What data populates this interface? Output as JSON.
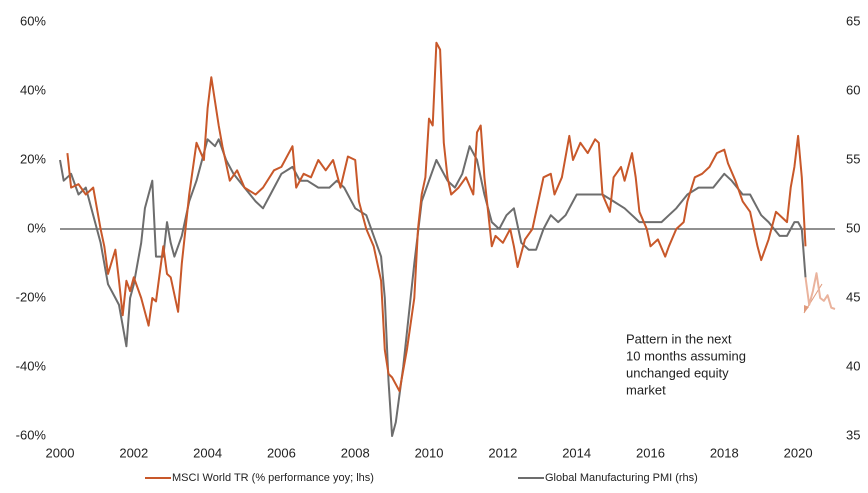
{
  "chart_data": {
    "type": "line",
    "xlim": [
      2000,
      2021
    ],
    "xticks": [
      2000,
      2002,
      2004,
      2006,
      2008,
      2010,
      2012,
      2014,
      2016,
      2018,
      2020
    ],
    "ylim": [
      -60,
      60
    ],
    "yticks": [
      {
        "value": -60,
        "label": "-60%"
      },
      {
        "value": -40,
        "label": "-40%"
      },
      {
        "value": -20,
        "label": "-20%"
      },
      {
        "value": 0,
        "label": "0%"
      },
      {
        "value": 20,
        "label": "20%"
      },
      {
        "value": 40,
        "label": "40%"
      },
      {
        "value": 60,
        "label": "60%"
      }
    ],
    "y2lim": [
      35,
      65
    ],
    "y2ticks": [
      35,
      40,
      45,
      50,
      55,
      60,
      65
    ],
    "series": [
      {
        "name": "MSCI World TR (% performance yoy; lhs)",
        "color": "#c8582a",
        "x": [
          2000.2,
          2000.3,
          2000.5,
          2000.7,
          2000.9,
          2001.1,
          2001.2,
          2001.3,
          2001.5,
          2001.6,
          2001.7,
          2001.8,
          2001.9,
          2002.0,
          2002.2,
          2002.4,
          2002.5,
          2002.6,
          2002.8,
          2002.9,
          2003.0,
          2003.2,
          2003.3,
          2003.5,
          2003.7,
          2003.9,
          2004.0,
          2004.1,
          2004.3,
          2004.4,
          2004.6,
          2004.8,
          2005.0,
          2005.3,
          2005.5,
          2005.8,
          2006.0,
          2006.3,
          2006.4,
          2006.6,
          2006.8,
          2007.0,
          2007.2,
          2007.4,
          2007.6,
          2007.8,
          2008.0,
          2008.1,
          2008.3,
          2008.5,
          2008.7,
          2008.8,
          2008.9,
          2009.0,
          2009.2,
          2009.4,
          2009.6,
          2009.7,
          2009.8,
          2009.9,
          2010.0,
          2010.1,
          2010.2,
          2010.3,
          2010.4,
          2010.5,
          2010.6,
          2010.8,
          2011.0,
          2011.2,
          2011.3,
          2011.4,
          2011.5,
          2011.6,
          2011.7,
          2011.8,
          2012.0,
          2012.2,
          2012.3,
          2012.4,
          2012.6,
          2012.8,
          2013.0,
          2013.1,
          2013.3,
          2013.4,
          2013.6,
          2013.8,
          2013.9,
          2014.1,
          2014.3,
          2014.5,
          2014.6,
          2014.7,
          2014.9,
          2015.0,
          2015.2,
          2015.3,
          2015.5,
          2015.6,
          2015.7,
          2015.9,
          2016.0,
          2016.2,
          2016.4,
          2016.5,
          2016.7,
          2016.9,
          2017.0,
          2017.2,
          2017.4,
          2017.6,
          2017.8,
          2018.0,
          2018.1,
          2018.3,
          2018.5,
          2018.7,
          2018.9,
          2019.0,
          2019.2,
          2019.4,
          2019.6,
          2019.7,
          2019.8,
          2019.9,
          2020.0,
          2020.1,
          2020.2
        ],
        "values": [
          22,
          12,
          13,
          10,
          12,
          0,
          -5,
          -13,
          -6,
          -15,
          -25,
          -15,
          -18,
          -14,
          -20,
          -28,
          -20,
          -21,
          -5,
          -13,
          -14,
          -24,
          -10,
          10,
          25,
          20,
          35,
          44,
          30,
          24,
          14,
          17,
          12,
          10,
          12,
          17,
          18,
          24,
          12,
          16,
          15,
          20,
          17,
          20,
          12,
          21,
          20,
          8,
          0,
          -5,
          -15,
          -35,
          -42,
          -43,
          -47,
          -35,
          -20,
          0,
          10,
          15,
          32,
          30,
          54,
          52,
          25,
          15,
          10,
          12,
          15,
          10,
          28,
          30,
          15,
          5,
          -5,
          -2,
          -4,
          0,
          -5,
          -11,
          -3,
          0,
          10,
          15,
          16,
          10,
          15,
          27,
          20,
          25,
          22,
          26,
          25,
          10,
          5,
          15,
          18,
          14,
          22,
          15,
          5,
          0,
          -5,
          -3,
          -8,
          -5,
          0,
          2,
          8,
          15,
          16,
          18,
          22,
          23,
          19,
          14,
          8,
          5,
          -5,
          -9,
          -3,
          5,
          3,
          2,
          12,
          18,
          27,
          15,
          -5
        ]
      },
      {
        "name": "Global Manufacturing PMI (rhs)",
        "color": "#6d6d6d",
        "axis": "y2",
        "x": [
          2000.0,
          2000.1,
          2000.3,
          2000.5,
          2000.7,
          2000.9,
          2001.1,
          2001.3,
          2001.5,
          2001.6,
          2001.8,
          2001.9,
          2002.0,
          2002.2,
          2002.3,
          2002.4,
          2002.5,
          2002.6,
          2002.8,
          2002.9,
          2003.0,
          2003.1,
          2003.3,
          2003.5,
          2003.7,
          2003.9,
          2004.0,
          2004.2,
          2004.3,
          2004.5,
          2004.7,
          2005.0,
          2005.3,
          2005.5,
          2005.7,
          2006.0,
          2006.3,
          2006.5,
          2006.7,
          2007.0,
          2007.3,
          2007.5,
          2007.7,
          2008.0,
          2008.3,
          2008.5,
          2008.7,
          2008.8,
          2008.9,
          2009.0,
          2009.1,
          2009.3,
          2009.5,
          2009.6,
          2009.8,
          2010.0,
          2010.2,
          2010.3,
          2010.5,
          2010.7,
          2010.9,
          2011.1,
          2011.3,
          2011.5,
          2011.7,
          2011.9,
          2012.1,
          2012.3,
          2012.5,
          2012.7,
          2012.9,
          2013.1,
          2013.3,
          2013.5,
          2013.7,
          2014.0,
          2014.3,
          2014.5,
          2014.7,
          2015.0,
          2015.3,
          2015.5,
          2015.7,
          2016.0,
          2016.3,
          2016.5,
          2016.7,
          2017.0,
          2017.3,
          2017.5,
          2017.7,
          2018.0,
          2018.2,
          2018.5,
          2018.7,
          2019.0,
          2019.2,
          2019.5,
          2019.7,
          2019.9,
          2020.0,
          2020.1,
          2020.2
        ],
        "values": [
          55,
          53.5,
          54,
          52.5,
          53,
          51,
          49,
          46,
          45,
          44.5,
          41.5,
          45,
          46,
          49,
          51.5,
          52.5,
          53.5,
          48,
          48,
          50.5,
          49,
          48,
          49.5,
          52,
          53.5,
          55.5,
          56.5,
          56,
          56.5,
          55,
          54,
          53,
          52,
          51.5,
          52.5,
          54,
          54.5,
          53.5,
          53.5,
          53,
          53,
          53.5,
          53,
          51.5,
          51,
          49.5,
          48,
          45,
          39,
          35,
          36,
          40,
          45,
          47.5,
          52,
          53.5,
          55,
          54.5,
          53.5,
          53,
          54,
          56,
          55,
          52.5,
          50.5,
          50,
          51,
          51.5,
          49,
          48.5,
          48.5,
          50,
          51,
          50.5,
          51,
          52.5,
          52.5,
          52.5,
          52.5,
          52,
          51.5,
          51,
          50.5,
          50.5,
          50.5,
          51,
          51.5,
          52.5,
          53,
          53,
          53,
          54,
          53.5,
          52.5,
          52.5,
          51,
          50.5,
          49.5,
          49.5,
          50.5,
          50.5,
          50,
          46.5
        ]
      }
    ],
    "projection": {
      "color": "#eab39d",
      "axis": "y2",
      "x": [
        2020.2,
        2020.3,
        2020.4,
        2020.5,
        2020.6,
        2020.7,
        2020.8,
        2020.9,
        2021.0
      ],
      "values": [
        46.5,
        44.5,
        45.5,
        46.8,
        45,
        44.8,
        45.2,
        44.3,
        44.2
      ]
    },
    "annotation": [
      "Pattern in the next",
      "10 months assuming",
      "unchanged equity",
      "market"
    ]
  }
}
